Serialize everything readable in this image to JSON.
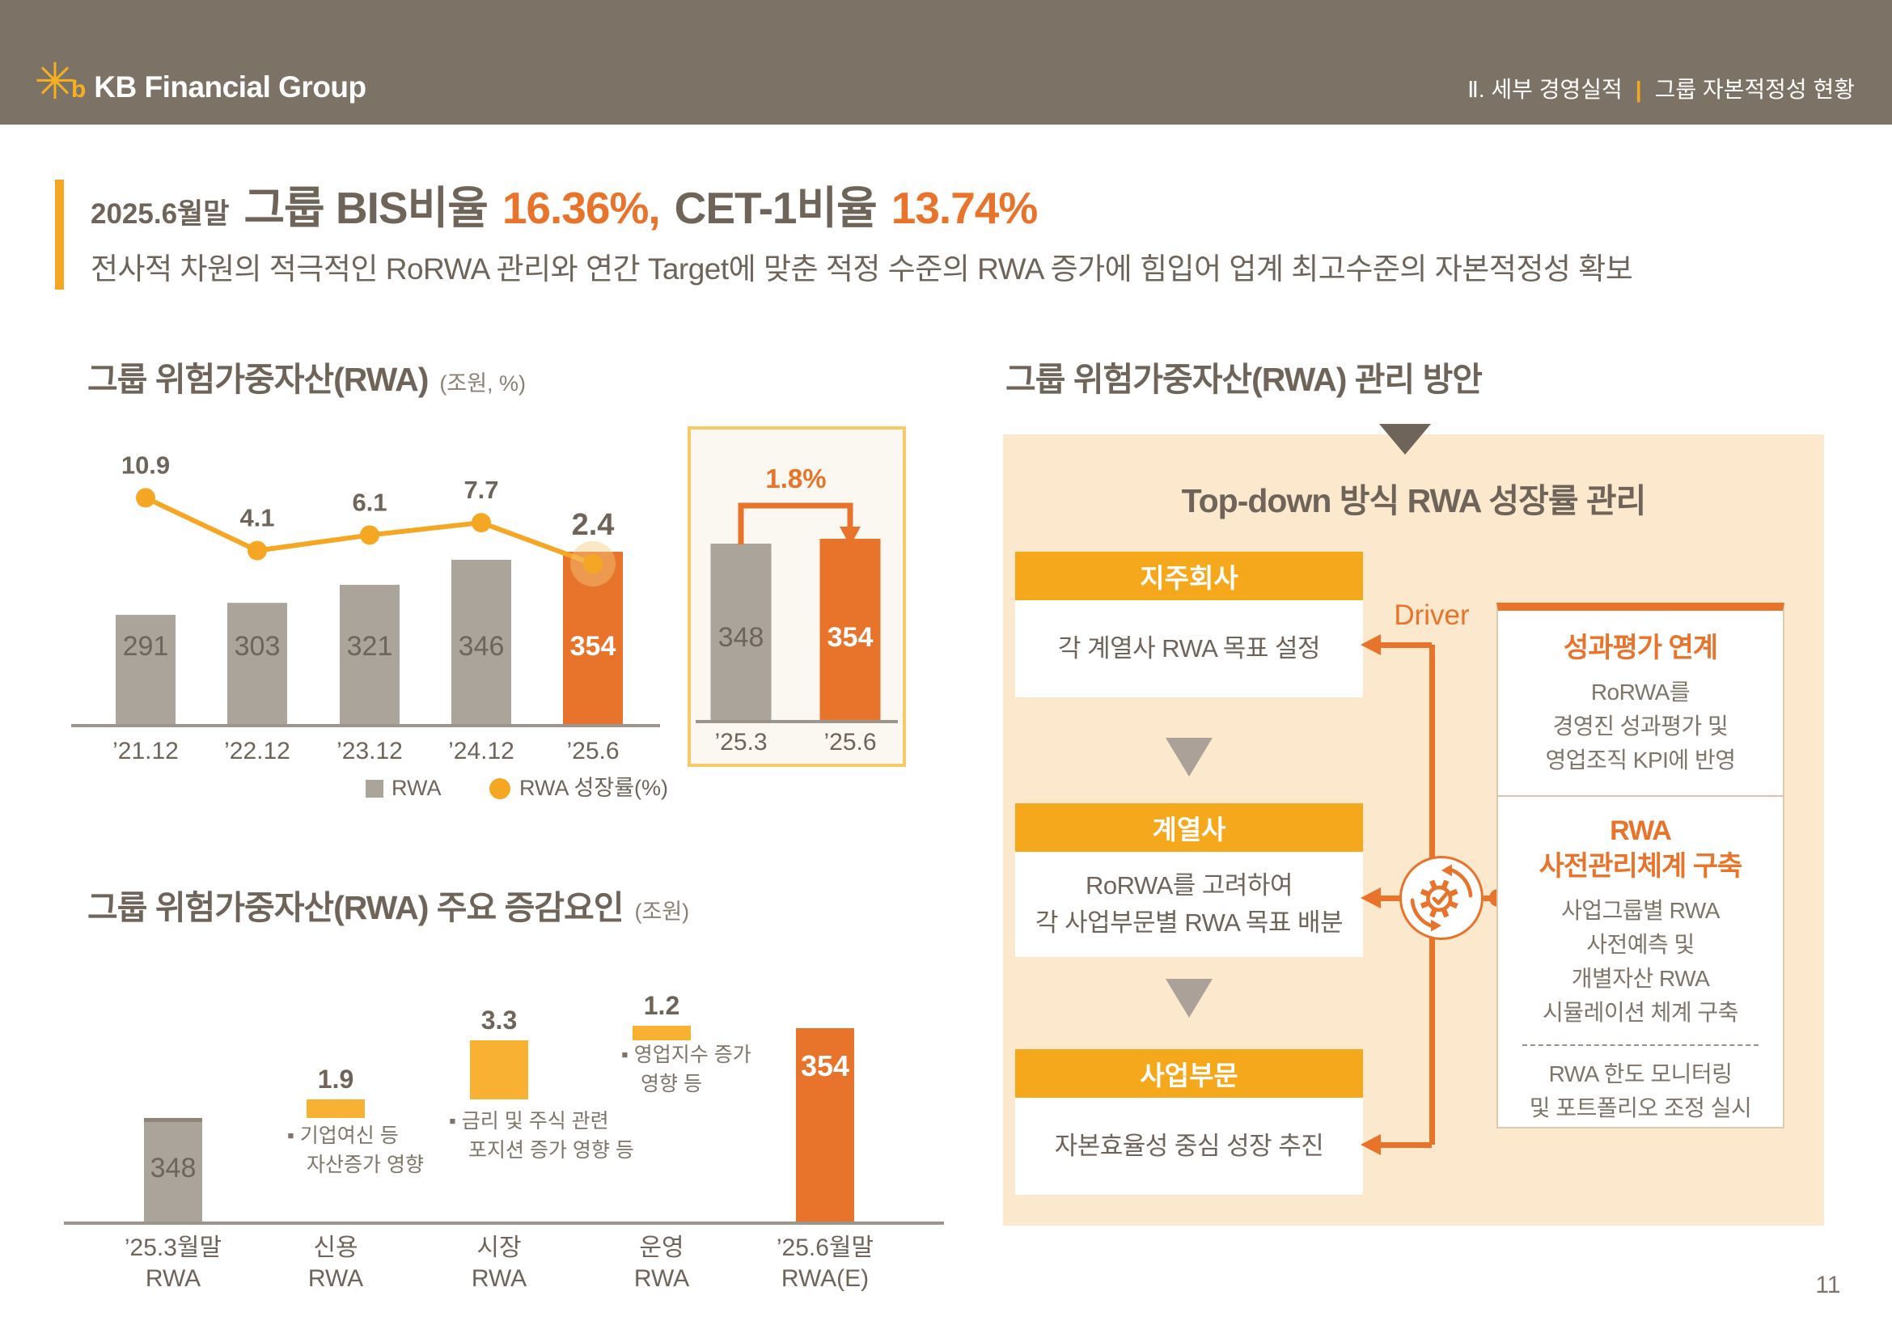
{
  "colors": {
    "accent_orange": "#E8732A",
    "accent_yellow": "#F5A623",
    "bar_gray": "#ABA49A",
    "bar_gray_cap": "#8F8578",
    "waterfall_yellow": "#F8B133",
    "panel_beige": "#FBE8CD",
    "header_taupe": "#7C7265",
    "text_dark": "#6E6459",
    "text_gray": "#7E7468",
    "axis_gray": "#9C958B"
  },
  "header": {
    "logo_star": "✳",
    "logo_b": "b",
    "logo_text": "KB Financial Group",
    "breadcrumb": {
      "section": "Ⅱ. 세부 경영실적",
      "divider": "|",
      "page": "그룹 자본적정성 현황"
    }
  },
  "title": {
    "date": "2025.6월말",
    "part1": "그룹 BIS비율",
    "value1": "16.36%,",
    "part2": "CET-1비율",
    "value2": "13.74%",
    "subtitle": "전사적 차원의 적극적인 RoRWA 관리와 연간 Target에 맞춘 적정 수준의 RWA 증가에 힘입어 업계 최고수준의 자본적정성 확보"
  },
  "sections": {
    "rwa_chart": {
      "title": "그룹 위험가중자산(RWA)",
      "unit": "(조원, %)",
      "legend": {
        "bar": "RWA",
        "line": "RWA 성장률(%)"
      }
    },
    "rwa_drivers": {
      "title": "그룹 위험가중자산(RWA) 주요 증감요인",
      "unit": "(조원)"
    },
    "rwa_plan": {
      "title": "그룹 위험가중자산(RWA) 관리 방안"
    }
  },
  "chart_data": [
    {
      "id": "rwa_trend",
      "type": "bar+line",
      "categories": [
        "’21.12",
        "’22.12",
        "’23.12",
        "’24.12",
        "’25.6"
      ],
      "series": [
        {
          "name": "RWA",
          "type": "bar",
          "values": [
            291,
            303,
            321,
            346,
            354
          ],
          "highlight_index": 4
        },
        {
          "name": "RWA 성장률(%)",
          "type": "line",
          "values": [
            10.9,
            4.1,
            6.1,
            7.7,
            2.4
          ]
        }
      ],
      "unit": "조원, %",
      "legend_position": "bottom"
    },
    {
      "id": "rwa_qoq",
      "type": "bar",
      "categories": [
        "’25.3",
        "’25.6"
      ],
      "values": [
        348,
        354
      ],
      "highlight_index": 1,
      "annotation": "1.8%"
    },
    {
      "id": "rwa_waterfall",
      "type": "waterfall",
      "categories": [
        "’25.3월말\nRWA",
        "신용\nRWA",
        "시장\nRWA",
        "운영\nRWA",
        "’25.6월말\nRWA(E)"
      ],
      "values": [
        348,
        1.9,
        3.3,
        1.2,
        354
      ],
      "labels": [
        "348",
        "1.9",
        "3.3",
        "1.2",
        "354"
      ],
      "notes": [
        {
          "at": "신용 RWA",
          "text": "기업여신 등\n자산증가 영향"
        },
        {
          "at": "시장 RWA",
          "text": "금리 및 주식 관련\n포지션 증가 영향 등"
        },
        {
          "at": "운영 RWA",
          "text": "영업지수 증가\n영향 등"
        }
      ]
    }
  ],
  "diagram": {
    "title": "Top-down 방식 RWA 성장률 관리",
    "boxes": [
      {
        "header": "지주회사",
        "body": "각 계열사 RWA 목표 설정"
      },
      {
        "header": "계열사",
        "body": "RoRWA를 고려하여\n각 사업부문별 RWA 목표 배분"
      },
      {
        "header": "사업부문",
        "body": "자본효율성 중심 성장 추진"
      }
    ],
    "driver_label": "Driver",
    "side_box": {
      "title1": "성과평가 연계",
      "text1": "RoRWA를\n경영진 성과평가 및\n영업조직 KPI에 반영",
      "title2": "RWA\n사전관리체계 구축",
      "text2": "사업그룹별 RWA\n사전예측 및\n개별자산 RWA\n시뮬레이션 체계 구축",
      "text3": "RWA 한도 모니터링\n및 포트폴리오 조정 실시"
    }
  },
  "page_number": "11"
}
